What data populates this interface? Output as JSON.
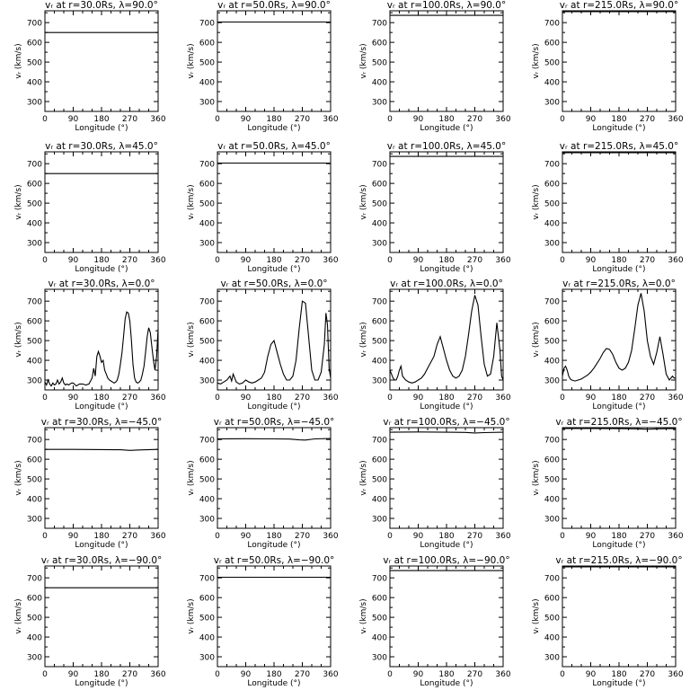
{
  "chart_data": [
    {
      "type": "line",
      "title": "vᵣ at r=30.0Rs, λ=90.0°",
      "xlabel": "Longitude (°)",
      "ylabel": "vᵣ (km/s)",
      "xlim": [
        0,
        360
      ],
      "ylim": [
        250,
        760
      ],
      "xticks": [
        "0",
        "90",
        "180",
        "270",
        "360"
      ],
      "yticks": [
        "300",
        "400",
        "500",
        "600",
        "700"
      ],
      "series": [
        {
          "x": [
            0,
            360
          ],
          "y": [
            650,
            650
          ]
        }
      ]
    },
    {
      "type": "line",
      "title": "vᵣ at r=50.0Rs, λ=90.0°",
      "xlabel": "Longitude (°)",
      "ylabel": "vᵣ (km/s)",
      "xlim": [
        0,
        360
      ],
      "ylim": [
        250,
        760
      ],
      "xticks": [
        "0",
        "90",
        "180",
        "270",
        "360"
      ],
      "yticks": [
        "300",
        "400",
        "500",
        "600",
        "700"
      ],
      "series": [
        {
          "x": [
            0,
            360
          ],
          "y": [
            703,
            703
          ]
        }
      ]
    },
    {
      "type": "line",
      "title": "vᵣ at r=100.0Rs, λ=90.0°",
      "xlabel": "Longitude (°)",
      "ylabel": "vᵣ (km/s)",
      "xlim": [
        0,
        360
      ],
      "ylim": [
        250,
        760
      ],
      "xticks": [
        "0",
        "90",
        "180",
        "270",
        "360"
      ],
      "yticks": [
        "300",
        "400",
        "500",
        "600",
        "700"
      ],
      "series": [
        {
          "x": [
            0,
            360
          ],
          "y": [
            737,
            737
          ]
        }
      ]
    },
    {
      "type": "line",
      "title": "vᵣ at r=215.0Rs, λ=90.0°",
      "xlabel": "Longitude (°)",
      "ylabel": "vᵣ (km/s)",
      "xlim": [
        0,
        360
      ],
      "ylim": [
        250,
        760
      ],
      "xticks": [
        "0",
        "90",
        "180",
        "270",
        "360"
      ],
      "yticks": [
        "300",
        "400",
        "500",
        "600",
        "700"
      ],
      "series": [
        {
          "x": [
            0,
            360
          ],
          "y": [
            756,
            756
          ]
        }
      ]
    },
    {
      "type": "line",
      "title": "vᵣ at r=30.0Rs, λ=45.0°",
      "xlabel": "Longitude (°)",
      "ylabel": "vᵣ (km/s)",
      "xlim": [
        0,
        360
      ],
      "ylim": [
        250,
        760
      ],
      "xticks": [
        "0",
        "90",
        "180",
        "270",
        "360"
      ],
      "yticks": [
        "300",
        "400",
        "500",
        "600",
        "700"
      ],
      "series": [
        {
          "x": [
            0,
            360
          ],
          "y": [
            650,
            650
          ]
        }
      ]
    },
    {
      "type": "line",
      "title": "vᵣ at r=50.0Rs, λ=45.0°",
      "xlabel": "Longitude (°)",
      "ylabel": "vᵣ (km/s)",
      "xlim": [
        0,
        360
      ],
      "ylim": [
        250,
        760
      ],
      "xticks": [
        "0",
        "90",
        "180",
        "270",
        "360"
      ],
      "yticks": [
        "300",
        "400",
        "500",
        "600",
        "700"
      ],
      "series": [
        {
          "x": [
            0,
            360
          ],
          "y": [
            703,
            703
          ]
        }
      ]
    },
    {
      "type": "line",
      "title": "vᵣ at r=100.0Rs, λ=45.0°",
      "xlabel": "Longitude (°)",
      "ylabel": "vᵣ (km/s)",
      "xlim": [
        0,
        360
      ],
      "ylim": [
        250,
        760
      ],
      "xticks": [
        "0",
        "90",
        "180",
        "270",
        "360"
      ],
      "yticks": [
        "300",
        "400",
        "500",
        "600",
        "700"
      ],
      "series": [
        {
          "x": [
            0,
            360
          ],
          "y": [
            737,
            737
          ]
        }
      ]
    },
    {
      "type": "line",
      "title": "vᵣ at r=215.0Rs, λ=45.0°",
      "xlabel": "Longitude (°)",
      "ylabel": "vᵣ (km/s)",
      "xlim": [
        0,
        360
      ],
      "ylim": [
        250,
        760
      ],
      "xticks": [
        "0",
        "90",
        "180",
        "270",
        "360"
      ],
      "yticks": [
        "300",
        "400",
        "500",
        "600",
        "700"
      ],
      "series": [
        {
          "x": [
            0,
            360
          ],
          "y": [
            756,
            756
          ]
        }
      ]
    },
    {
      "type": "line",
      "title": "vᵣ at r=30.0Rs, λ=0.0°",
      "xlabel": "Longitude (°)",
      "ylabel": "vᵣ (km/s)",
      "xlim": [
        0,
        360
      ],
      "ylim": [
        250,
        760
      ],
      "xticks": [
        "0",
        "90",
        "180",
        "270",
        "360"
      ],
      "yticks": [
        "300",
        "400",
        "500",
        "600",
        "700"
      ],
      "series": [
        {
          "x": [
            0,
            5,
            10,
            15,
            20,
            25,
            30,
            35,
            40,
            45,
            50,
            55,
            60,
            65,
            70,
            75,
            80,
            85,
            90,
            100,
            110,
            120,
            130,
            140,
            150,
            155,
            160,
            165,
            170,
            175,
            180,
            185,
            190,
            195,
            200,
            205,
            210,
            215,
            220,
            225,
            230,
            235,
            240,
            245,
            250,
            255,
            260,
            265,
            270,
            275,
            280,
            285,
            290,
            295,
            300,
            305,
            310,
            315,
            320,
            325,
            330,
            335,
            340,
            345,
            350,
            355,
            360
          ],
          "y": [
            290,
            275,
            300,
            280,
            270,
            285,
            275,
            280,
            300,
            280,
            290,
            310,
            285,
            275,
            280,
            275,
            280,
            285,
            285,
            270,
            280,
            280,
            275,
            280,
            310,
            360,
            320,
            420,
            445,
            420,
            390,
            400,
            350,
            330,
            310,
            300,
            295,
            290,
            285,
            290,
            300,
            330,
            380,
            440,
            520,
            610,
            645,
            640,
            600,
            500,
            380,
            310,
            290,
            285,
            290,
            300,
            330,
            370,
            440,
            520,
            565,
            540,
            470,
            400,
            350,
            420,
            560
          ]
        }
      ]
    },
    {
      "type": "line",
      "title": "vᵣ at r=50.0Rs, λ=0.0°",
      "xlabel": "Longitude (°)",
      "ylabel": "vᵣ (km/s)",
      "xlim": [
        0,
        360
      ],
      "ylim": [
        250,
        760
      ],
      "xticks": [
        "0",
        "90",
        "180",
        "270",
        "360"
      ],
      "yticks": [
        "300",
        "400",
        "500",
        "600",
        "700"
      ],
      "series": [
        {
          "x": [
            0,
            10,
            20,
            30,
            40,
            45,
            50,
            55,
            60,
            65,
            70,
            80,
            90,
            100,
            110,
            120,
            130,
            140,
            150,
            160,
            170,
            180,
            190,
            200,
            210,
            220,
            230,
            240,
            250,
            260,
            270,
            280,
            290,
            300,
            310,
            320,
            330,
            340,
            345,
            350,
            355,
            360
          ],
          "y": [
            285,
            280,
            290,
            300,
            320,
            295,
            330,
            310,
            290,
            285,
            280,
            285,
            300,
            290,
            285,
            290,
            300,
            310,
            340,
            420,
            480,
            500,
            440,
            380,
            330,
            300,
            300,
            320,
            400,
            560,
            700,
            690,
            520,
            350,
            300,
            300,
            340,
            480,
            640,
            580,
            360,
            310
          ]
        }
      ]
    },
    {
      "type": "line",
      "title": "vᵣ at r=100.0Rs, λ=0.0°",
      "xlabel": "Longitude (°)",
      "ylabel": "vᵣ (km/s)",
      "xlim": [
        0,
        360
      ],
      "ylim": [
        250,
        760
      ],
      "xticks": [
        "0",
        "90",
        "180",
        "270",
        "360"
      ],
      "yticks": [
        "300",
        "400",
        "500",
        "600",
        "700"
      ],
      "series": [
        {
          "x": [
            0,
            5,
            10,
            15,
            20,
            25,
            30,
            35,
            40,
            50,
            60,
            70,
            80,
            90,
            100,
            110,
            120,
            130,
            140,
            150,
            160,
            170,
            180,
            190,
            200,
            210,
            220,
            230,
            240,
            250,
            260,
            270,
            280,
            290,
            300,
            310,
            320,
            330,
            340,
            350,
            355,
            360
          ],
          "y": [
            350,
            330,
            310,
            300,
            300,
            320,
            350,
            370,
            320,
            300,
            290,
            285,
            290,
            300,
            310,
            330,
            360,
            390,
            420,
            480,
            520,
            460,
            400,
            350,
            320,
            310,
            320,
            350,
            420,
            530,
            650,
            730,
            680,
            520,
            380,
            320,
            330,
            420,
            590,
            450,
            320,
            300
          ]
        }
      ]
    },
    {
      "type": "line",
      "title": "vᵣ at r=215.0Rs, λ=0.0°",
      "xlabel": "Longitude (°)",
      "ylabel": "vᵣ (km/s)",
      "xlim": [
        0,
        360
      ],
      "ylim": [
        250,
        760
      ],
      "xticks": [
        "0",
        "90",
        "180",
        "270",
        "360"
      ],
      "yticks": [
        "300",
        "400",
        "500",
        "600",
        "700"
      ],
      "series": [
        {
          "x": [
            0,
            5,
            10,
            15,
            20,
            25,
            30,
            40,
            50,
            60,
            70,
            80,
            90,
            100,
            110,
            120,
            130,
            140,
            150,
            160,
            170,
            180,
            190,
            200,
            210,
            220,
            230,
            240,
            250,
            260,
            270,
            280,
            290,
            300,
            310,
            320,
            330,
            340,
            350,
            355,
            360
          ],
          "y": [
            320,
            360,
            370,
            350,
            320,
            305,
            300,
            295,
            300,
            305,
            315,
            325,
            340,
            360,
            385,
            410,
            440,
            460,
            455,
            430,
            390,
            360,
            350,
            360,
            390,
            450,
            560,
            680,
            740,
            650,
            500,
            420,
            380,
            440,
            520,
            430,
            330,
            300,
            320,
            310,
            310
          ]
        }
      ]
    },
    {
      "type": "line",
      "title": "vᵣ at r=30.0Rs, λ=−45.0°",
      "xlabel": "Longitude (°)",
      "ylabel": "vᵣ (km/s)",
      "xlim": [
        0,
        360
      ],
      "ylim": [
        250,
        760
      ],
      "xticks": [
        "0",
        "90",
        "180",
        "270",
        "360"
      ],
      "yticks": [
        "300",
        "400",
        "500",
        "600",
        "700"
      ],
      "series": [
        {
          "x": [
            0,
            90,
            180,
            240,
            270,
            300,
            360
          ],
          "y": [
            650,
            650,
            649,
            648,
            645,
            647,
            650
          ]
        }
      ]
    },
    {
      "type": "line",
      "title": "vᵣ at r=50.0Rs, λ=−45.0°",
      "xlabel": "Longitude (°)",
      "ylabel": "vᵣ (km/s)",
      "xlim": [
        0,
        360
      ],
      "ylim": [
        250,
        760
      ],
      "xticks": [
        "0",
        "90",
        "180",
        "270",
        "360"
      ],
      "yticks": [
        "300",
        "400",
        "500",
        "600",
        "700"
      ],
      "series": [
        {
          "x": [
            0,
            90,
            180,
            230,
            260,
            280,
            310,
            360
          ],
          "y": [
            703,
            704,
            703,
            702,
            698,
            697,
            703,
            705
          ]
        }
      ]
    },
    {
      "type": "line",
      "title": "vᵣ at r=100.0Rs, λ=−45.0°",
      "xlabel": "Longitude (°)",
      "ylabel": "vᵣ (km/s)",
      "xlim": [
        0,
        360
      ],
      "ylim": [
        250,
        760
      ],
      "xticks": [
        "0",
        "90",
        "180",
        "270",
        "360"
      ],
      "yticks": [
        "300",
        "400",
        "500",
        "600",
        "700"
      ],
      "series": [
        {
          "x": [
            0,
            90,
            180,
            240,
            270,
            300,
            360
          ],
          "y": [
            737,
            738,
            737,
            736,
            733,
            735,
            737
          ]
        }
      ]
    },
    {
      "type": "line",
      "title": "vᵣ at r=215.0Rs, λ=−45.0°",
      "xlabel": "Longitude (°)",
      "ylabel": "vᵣ (km/s)",
      "xlim": [
        0,
        360
      ],
      "ylim": [
        250,
        760
      ],
      "xticks": [
        "0",
        "90",
        "180",
        "270",
        "360"
      ],
      "yticks": [
        "300",
        "400",
        "500",
        "600",
        "700"
      ],
      "series": [
        {
          "x": [
            0,
            90,
            180,
            240,
            270,
            300,
            360
          ],
          "y": [
            756,
            756,
            755,
            754,
            752,
            754,
            756
          ]
        }
      ]
    },
    {
      "type": "line",
      "title": "vᵣ at r=30.0Rs, λ=−90.0°",
      "xlabel": "Longitude (°)",
      "ylabel": "vᵣ (km/s)",
      "xlim": [
        0,
        360
      ],
      "ylim": [
        250,
        760
      ],
      "xticks": [
        "0",
        "90",
        "180",
        "270",
        "360"
      ],
      "yticks": [
        "300",
        "400",
        "500",
        "600",
        "700"
      ],
      "series": [
        {
          "x": [
            0,
            360
          ],
          "y": [
            650,
            650
          ]
        }
      ]
    },
    {
      "type": "line",
      "title": "vᵣ at r=50.0Rs, λ=−90.0°",
      "xlabel": "Longitude (°)",
      "ylabel": "vᵣ (km/s)",
      "xlim": [
        0,
        360
      ],
      "ylim": [
        250,
        760
      ],
      "xticks": [
        "0",
        "90",
        "180",
        "270",
        "360"
      ],
      "yticks": [
        "300",
        "400",
        "500",
        "600",
        "700"
      ],
      "series": [
        {
          "x": [
            0,
            360
          ],
          "y": [
            703,
            703
          ]
        }
      ]
    },
    {
      "type": "line",
      "title": "vᵣ at r=100.0Rs, λ=−90.0°",
      "xlabel": "Longitude (°)",
      "ylabel": "vᵣ (km/s)",
      "xlim": [
        0,
        360
      ],
      "ylim": [
        250,
        760
      ],
      "xticks": [
        "0",
        "90",
        "180",
        "270",
        "360"
      ],
      "yticks": [
        "300",
        "400",
        "500",
        "600",
        "700"
      ],
      "series": [
        {
          "x": [
            0,
            360
          ],
          "y": [
            737,
            737
          ]
        }
      ]
    },
    {
      "type": "line",
      "title": "vᵣ at r=215.0Rs, λ=−90.0°",
      "xlabel": "Longitude (°)",
      "ylabel": "vᵣ (km/s)",
      "xlim": [
        0,
        360
      ],
      "ylim": [
        250,
        760
      ],
      "xticks": [
        "0",
        "90",
        "180",
        "270",
        "360"
      ],
      "yticks": [
        "300",
        "400",
        "500",
        "600",
        "700"
      ],
      "series": [
        {
          "x": [
            0,
            360
          ],
          "y": [
            756,
            756
          ]
        }
      ]
    }
  ]
}
